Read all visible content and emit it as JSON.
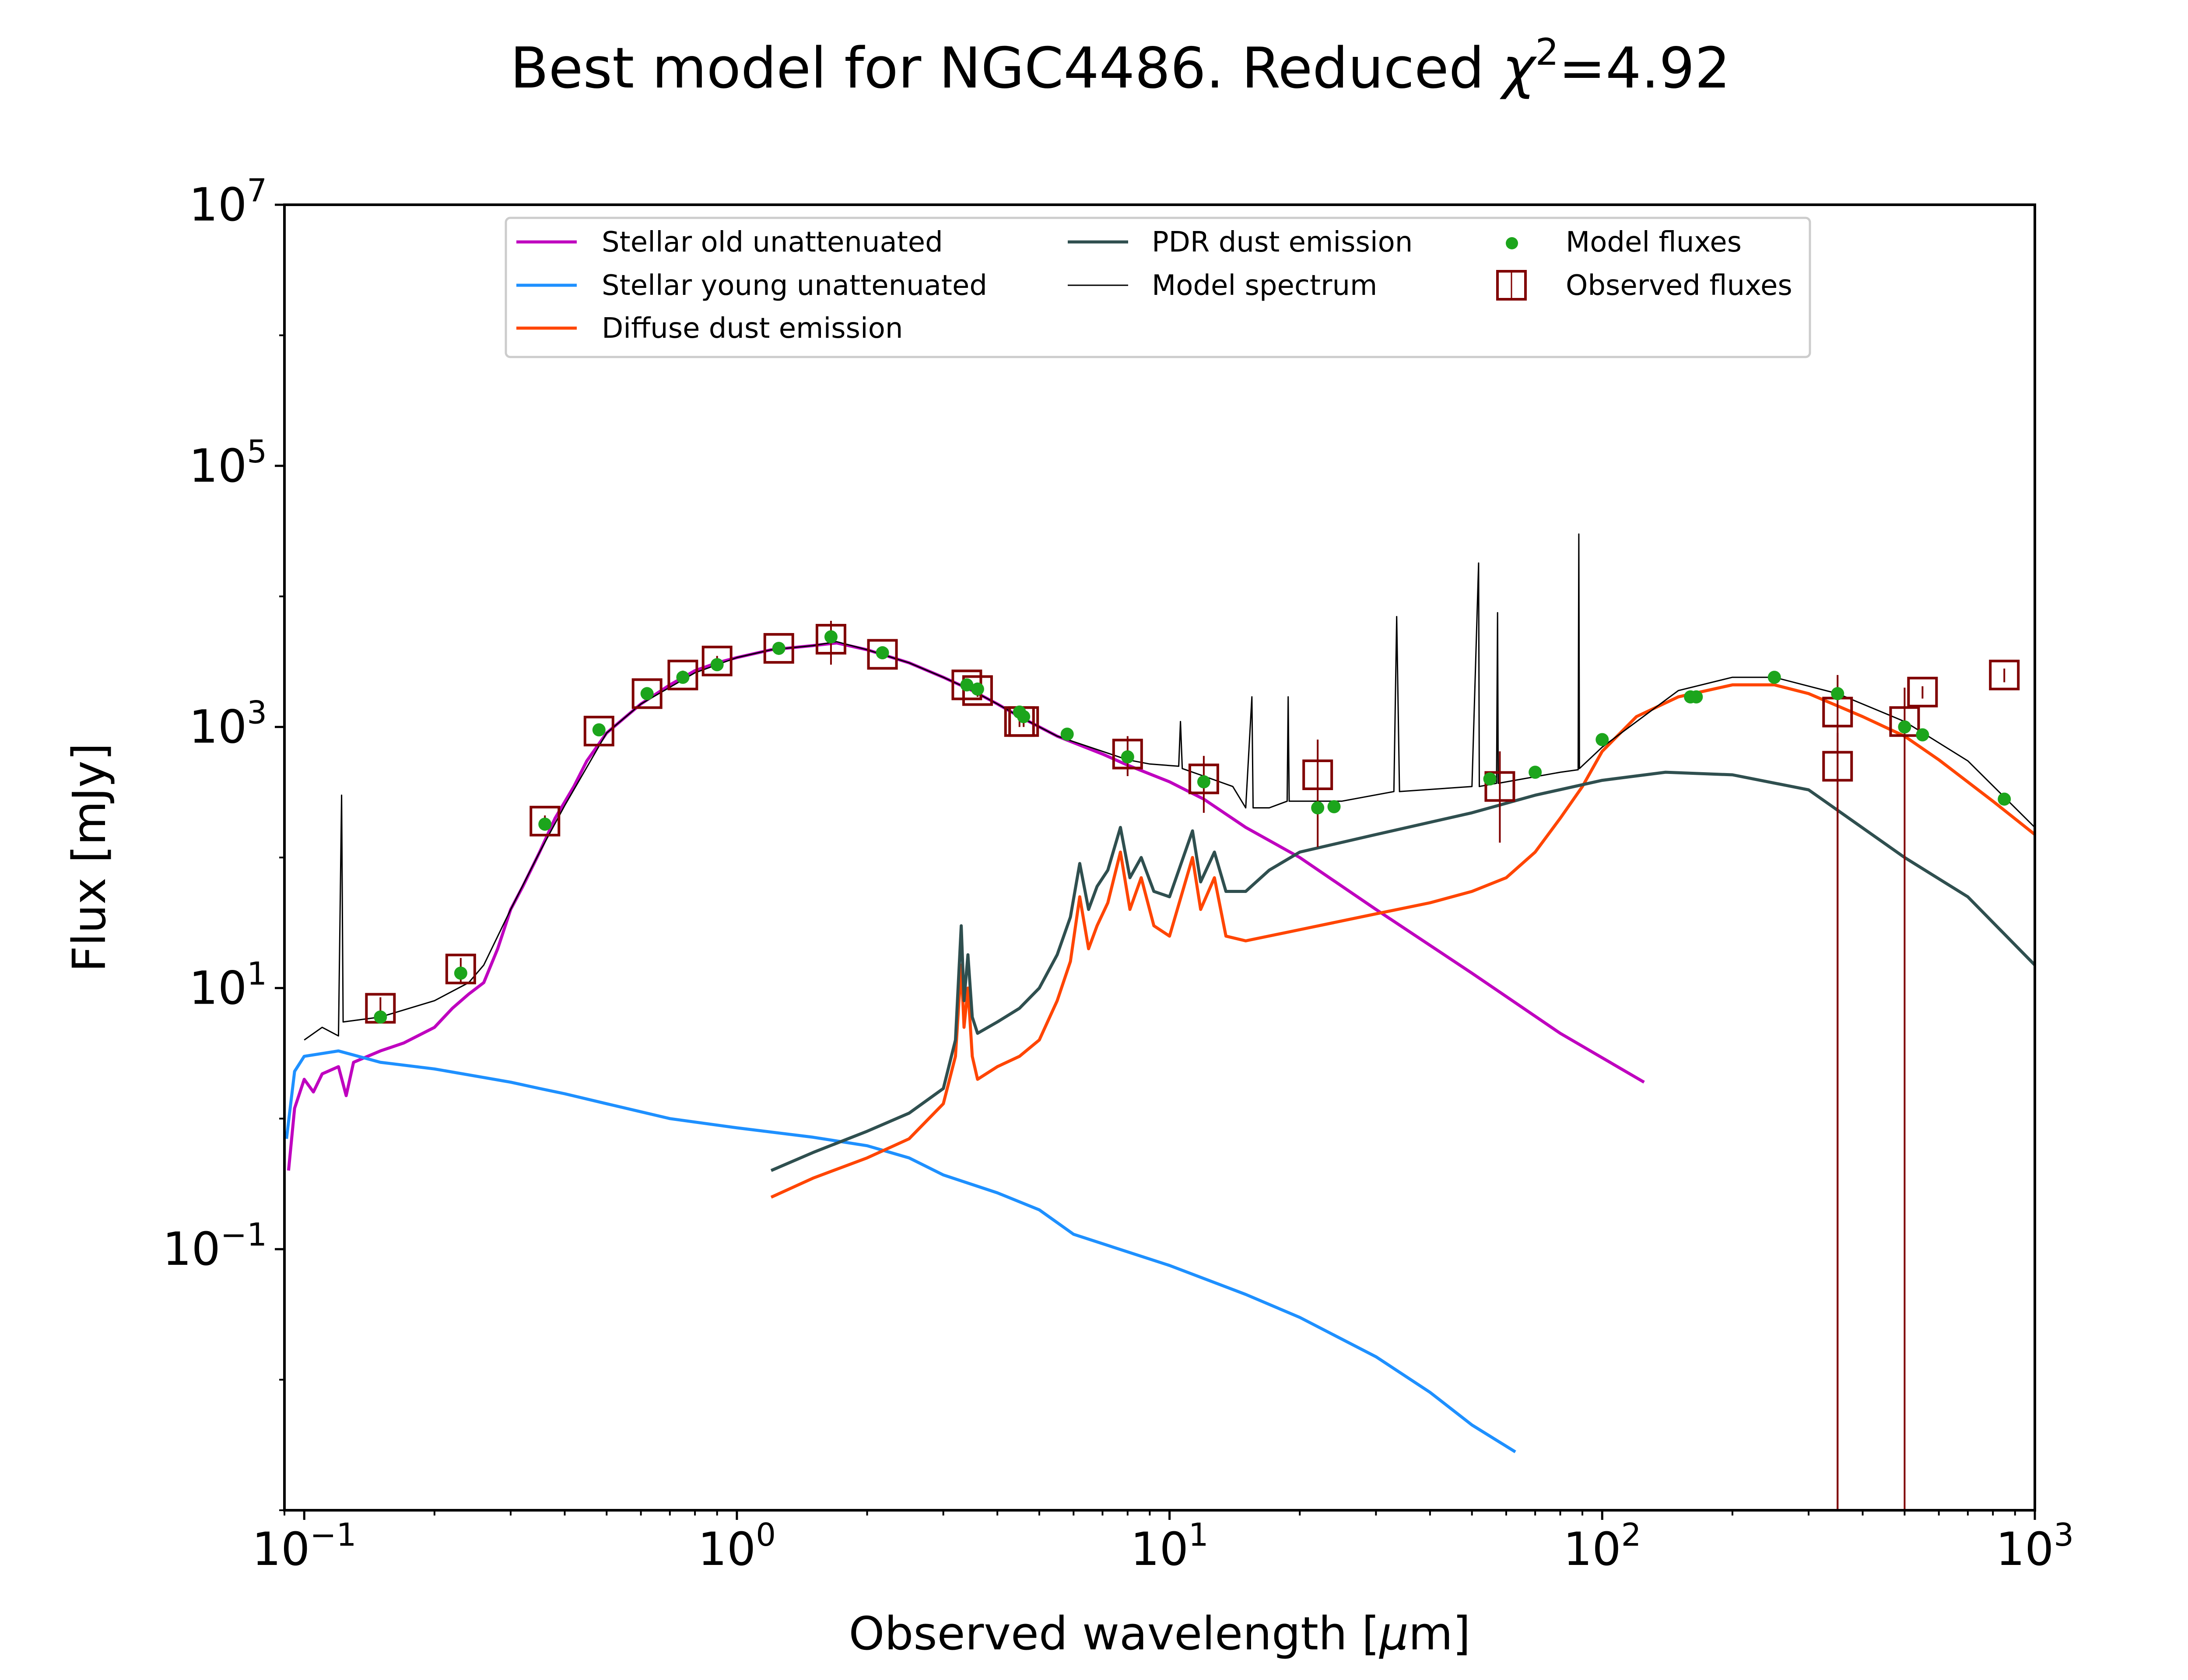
{
  "chart_data": {
    "type": "line",
    "title_prefix": "Best model for NGC4486. Reduced ",
    "title_symbol": "χ",
    "title_exponent": "2",
    "title_value": "=4.92",
    "xlabel_prefix": "Observed wavelength [",
    "xlabel_unit": "μ",
    "xlabel_suffix": "m]",
    "ylabel": "Flux [mJy]",
    "x_scale": "log",
    "y_scale": "log",
    "xlim": [
      0.09,
      1000
    ],
    "ylim": [
      0.001,
      10000000
    ],
    "grid": false,
    "legend_position": "top",
    "x_ticks": [
      {
        "value": 0.1,
        "base": "10",
        "exp": "−1"
      },
      {
        "value": 1,
        "base": "10",
        "exp": "0"
      },
      {
        "value": 10,
        "base": "10",
        "exp": "1"
      },
      {
        "value": 100,
        "base": "10",
        "exp": "2"
      },
      {
        "value": 1000,
        "base": "10",
        "exp": "3"
      }
    ],
    "y_ticks": [
      {
        "value": 0.1,
        "base": "10",
        "exp": "−1"
      },
      {
        "value": 10,
        "base": "10",
        "exp": "1"
      },
      {
        "value": 1000,
        "base": "10",
        "exp": "3"
      },
      {
        "value": 100000,
        "base": "10",
        "exp": "5"
      },
      {
        "value": 10000000,
        "base": "10",
        "exp": "7"
      }
    ],
    "series": [
      {
        "name": "Stellar old unattenuated",
        "color": "#bf00bf",
        "points": [
          [
            0.092,
            0.4
          ],
          [
            0.095,
            1.2
          ],
          [
            0.1,
            2.0
          ],
          [
            0.105,
            1.6
          ],
          [
            0.11,
            2.2
          ],
          [
            0.12,
            2.5
          ],
          [
            0.125,
            1.5
          ],
          [
            0.13,
            2.7
          ],
          [
            0.15,
            3.3
          ],
          [
            0.17,
            3.8
          ],
          [
            0.2,
            5
          ],
          [
            0.22,
            7
          ],
          [
            0.24,
            9
          ],
          [
            0.26,
            11
          ],
          [
            0.28,
            20
          ],
          [
            0.3,
            40
          ],
          [
            0.32,
            60
          ],
          [
            0.35,
            110
          ],
          [
            0.38,
            200
          ],
          [
            0.42,
            350
          ],
          [
            0.45,
            550
          ],
          [
            0.5,
            900
          ],
          [
            0.6,
            1500
          ],
          [
            0.7,
            2100
          ],
          [
            0.8,
            2700
          ],
          [
            0.9,
            3100
          ],
          [
            1.0,
            3400
          ],
          [
            1.2,
            3900
          ],
          [
            1.5,
            4200
          ],
          [
            1.7,
            4400
          ],
          [
            2.0,
            3900
          ],
          [
            2.5,
            3100
          ],
          [
            3.0,
            2400
          ],
          [
            3.5,
            1900
          ],
          [
            4.0,
            1500
          ],
          [
            4.5,
            1200
          ],
          [
            5.5,
            850
          ],
          [
            7,
            620
          ],
          [
            8,
            510
          ],
          [
            10,
            380
          ],
          [
            12,
            280
          ],
          [
            15,
            170
          ],
          [
            20,
            100
          ],
          [
            30,
            40
          ],
          [
            50,
            13
          ],
          [
            80,
            4.5
          ],
          [
            125,
            1.9
          ]
        ]
      },
      {
        "name": "Stellar young unattenuated",
        "color": "#1e90ff",
        "points": [
          [
            0.091,
            0.7
          ],
          [
            0.095,
            2.3
          ],
          [
            0.1,
            3.0
          ],
          [
            0.12,
            3.3
          ],
          [
            0.15,
            2.7
          ],
          [
            0.2,
            2.4
          ],
          [
            0.3,
            1.9
          ],
          [
            0.35,
            1.7
          ],
          [
            0.4,
            1.55
          ],
          [
            0.5,
            1.3
          ],
          [
            0.7,
            1.0
          ],
          [
            1.0,
            0.85
          ],
          [
            1.5,
            0.72
          ],
          [
            2.0,
            0.62
          ],
          [
            2.5,
            0.5
          ],
          [
            3.0,
            0.37
          ],
          [
            4.0,
            0.27
          ],
          [
            5.0,
            0.2
          ],
          [
            6.0,
            0.13
          ],
          [
            10,
            0.075
          ],
          [
            15,
            0.045
          ],
          [
            20,
            0.03
          ],
          [
            30,
            0.015
          ],
          [
            40,
            0.008
          ],
          [
            50,
            0.0045
          ],
          [
            63,
            0.0028
          ]
        ]
      },
      {
        "name": "Diffuse dust emission",
        "color": "#ff4500",
        "points": [
          [
            1.2,
            0.25
          ],
          [
            1.5,
            0.35
          ],
          [
            2,
            0.5
          ],
          [
            2.5,
            0.7
          ],
          [
            3.0,
            1.3
          ],
          [
            3.2,
            3
          ],
          [
            3.3,
            15
          ],
          [
            3.35,
            5
          ],
          [
            3.42,
            10
          ],
          [
            3.5,
            3
          ],
          [
            3.6,
            2
          ],
          [
            4,
            2.5
          ],
          [
            4.5,
            3
          ],
          [
            5,
            4
          ],
          [
            5.5,
            8
          ],
          [
            5.9,
            16
          ],
          [
            6.2,
            50
          ],
          [
            6.5,
            20
          ],
          [
            6.8,
            30
          ],
          [
            7.2,
            45
          ],
          [
            7.7,
            110
          ],
          [
            8.1,
            40
          ],
          [
            8.6,
            70
          ],
          [
            9.2,
            30
          ],
          [
            10,
            25
          ],
          [
            11.3,
            100
          ],
          [
            11.8,
            40
          ],
          [
            12.7,
            70
          ],
          [
            13.5,
            25
          ],
          [
            15,
            23
          ],
          [
            20,
            28
          ],
          [
            30,
            37
          ],
          [
            40,
            45
          ],
          [
            50,
            55
          ],
          [
            60,
            70
          ],
          [
            70,
            110
          ],
          [
            80,
            200
          ],
          [
            90,
            350
          ],
          [
            100,
            650
          ],
          [
            120,
            1200
          ],
          [
            150,
            1700
          ],
          [
            200,
            2100
          ],
          [
            250,
            2100
          ],
          [
            300,
            1800
          ],
          [
            400,
            1200
          ],
          [
            500,
            850
          ],
          [
            600,
            560
          ],
          [
            800,
            270
          ],
          [
            1000,
            150
          ]
        ]
      },
      {
        "name": "PDR dust emission",
        "color": "#2f4f4f",
        "points": [
          [
            1.2,
            0.4
          ],
          [
            1.5,
            0.55
          ],
          [
            2,
            0.8
          ],
          [
            2.5,
            1.1
          ],
          [
            3.0,
            1.7
          ],
          [
            3.2,
            4
          ],
          [
            3.3,
            30
          ],
          [
            3.35,
            8
          ],
          [
            3.42,
            18
          ],
          [
            3.5,
            6
          ],
          [
            3.6,
            4.5
          ],
          [
            4,
            5.5
          ],
          [
            4.5,
            7
          ],
          [
            5,
            10
          ],
          [
            5.5,
            18
          ],
          [
            5.9,
            35
          ],
          [
            6.2,
            90
          ],
          [
            6.5,
            40
          ],
          [
            6.8,
            60
          ],
          [
            7.2,
            80
          ],
          [
            7.7,
            170
          ],
          [
            8.1,
            70
          ],
          [
            8.6,
            100
          ],
          [
            9.2,
            55
          ],
          [
            10,
            50
          ],
          [
            11.3,
            160
          ],
          [
            11.8,
            65
          ],
          [
            12.7,
            110
          ],
          [
            13.5,
            55
          ],
          [
            15,
            55
          ],
          [
            17,
            80
          ],
          [
            20,
            110
          ],
          [
            30,
            150
          ],
          [
            50,
            220
          ],
          [
            70,
            300
          ],
          [
            100,
            390
          ],
          [
            140,
            450
          ],
          [
            200,
            430
          ],
          [
            300,
            330
          ],
          [
            500,
            100
          ],
          [
            700,
            50
          ],
          [
            1000,
            15
          ]
        ]
      },
      {
        "name": "Model spectrum",
        "color": "#000000",
        "points": [
          [
            0.1,
            4
          ],
          [
            0.11,
            5
          ],
          [
            0.12,
            4.3
          ],
          [
            0.122,
            300
          ],
          [
            0.123,
            5.5
          ],
          [
            0.15,
            6
          ],
          [
            0.2,
            8
          ],
          [
            0.24,
            11
          ],
          [
            0.26,
            15
          ],
          [
            0.3,
            40
          ],
          [
            0.35,
            110
          ],
          [
            0.4,
            250
          ],
          [
            0.5,
            900
          ],
          [
            0.6,
            1500
          ],
          [
            0.8,
            2600
          ],
          [
            1.0,
            3400
          ],
          [
            1.2,
            3900
          ],
          [
            1.5,
            4200
          ],
          [
            1.7,
            4500
          ],
          [
            2.0,
            3900
          ],
          [
            2.5,
            3100
          ],
          [
            3.0,
            2400
          ],
          [
            3.5,
            1900
          ],
          [
            4.0,
            1500
          ],
          [
            4.5,
            1200
          ],
          [
            5.5,
            850
          ],
          [
            7,
            650
          ],
          [
            8,
            560
          ],
          [
            9,
            520
          ],
          [
            10.5,
            500
          ],
          [
            10.6,
            1100
          ],
          [
            10.7,
            480
          ],
          [
            12,
            420
          ],
          [
            14,
            350
          ],
          [
            15,
            240
          ],
          [
            15.5,
            1700
          ],
          [
            15.6,
            240
          ],
          [
            17,
            240
          ],
          [
            18.7,
            270
          ],
          [
            18.8,
            1700
          ],
          [
            18.9,
            270
          ],
          [
            25,
            270
          ],
          [
            33,
            320
          ],
          [
            33.5,
            7000
          ],
          [
            34,
            320
          ],
          [
            50,
            350
          ],
          [
            51.8,
            18000
          ],
          [
            52,
            350
          ],
          [
            57,
            370
          ],
          [
            57.3,
            7500
          ],
          [
            57.5,
            370
          ],
          [
            80,
            450
          ],
          [
            88,
            470
          ],
          [
            88.3,
            30000
          ],
          [
            88.6,
            480
          ],
          [
            100,
            700
          ],
          [
            150,
            1900
          ],
          [
            200,
            2400
          ],
          [
            250,
            2400
          ],
          [
            350,
            1800
          ],
          [
            500,
            1100
          ],
          [
            700,
            550
          ],
          [
            1000,
            170
          ]
        ]
      }
    ],
    "model_fluxes": {
      "name": "Model fluxes",
      "color": "#1ca51c",
      "points": [
        [
          0.15,
          6
        ],
        [
          0.23,
          13
        ],
        [
          0.36,
          180
        ],
        [
          0.48,
          950
        ],
        [
          0.62,
          1800
        ],
        [
          0.75,
          2400
        ],
        [
          0.9,
          3000
        ],
        [
          1.25,
          4000
        ],
        [
          1.65,
          4900
        ],
        [
          2.17,
          3700
        ],
        [
          3.4,
          2100
        ],
        [
          3.6,
          1950
        ],
        [
          4.5,
          1300
        ],
        [
          4.6,
          1200
        ],
        [
          5.8,
          880
        ],
        [
          8,
          590
        ],
        [
          12,
          380
        ],
        [
          22,
          240
        ],
        [
          24,
          245
        ],
        [
          55,
          400
        ],
        [
          70,
          450
        ],
        [
          100,
          800
        ],
        [
          160,
          1700
        ],
        [
          165,
          1700
        ],
        [
          250,
          2400
        ],
        [
          350,
          1800
        ],
        [
          500,
          1000
        ],
        [
          550,
          870
        ],
        [
          850,
          280
        ]
      ]
    },
    "observed_fluxes": {
      "name": "Observed fluxes",
      "color": "#800000",
      "points": [
        {
          "x": 0.15,
          "y": 7,
          "lo": 5.5,
          "hi": 8.5
        },
        {
          "x": 0.23,
          "y": 14,
          "lo": 11,
          "hi": 17
        },
        {
          "x": 0.36,
          "y": 190,
          "lo": 170,
          "hi": 210
        },
        {
          "x": 0.48,
          "y": 930,
          "lo": 850,
          "hi": 1050
        },
        {
          "x": 0.62,
          "y": 1800,
          "lo": 1650,
          "hi": 1950
        },
        {
          "x": 0.75,
          "y": 2500,
          "lo": 2300,
          "hi": 2700
        },
        {
          "x": 0.9,
          "y": 3200,
          "lo": 2900,
          "hi": 3500
        },
        {
          "x": 1.25,
          "y": 4000,
          "lo": 3700,
          "hi": 4300
        },
        {
          "x": 1.65,
          "y": 4700,
          "lo": 3000,
          "hi": 6500
        },
        {
          "x": 2.17,
          "y": 3600,
          "lo": 3300,
          "hi": 3900
        },
        {
          "x": 3.4,
          "y": 2100,
          "lo": 1900,
          "hi": 2300
        },
        {
          "x": 3.6,
          "y": 1900,
          "lo": 1700,
          "hi": 2100
        },
        {
          "x": 4.5,
          "y": 1100,
          "lo": 1000,
          "hi": 1200
        },
        {
          "x": 4.6,
          "y": 1100,
          "lo": 1000,
          "hi": 1200
        },
        {
          "x": 8,
          "y": 620,
          "lo": 420,
          "hi": 850
        },
        {
          "x": 12,
          "y": 400,
          "lo": 220,
          "hi": 600
        },
        {
          "x": 22,
          "y": 430,
          "lo": 120,
          "hi": 800
        },
        {
          "x": 58,
          "y": 350,
          "lo": 130,
          "hi": 650
        },
        {
          "x": 350,
          "y": 1300,
          "lo": 0.001,
          "hi": 2500
        },
        {
          "x": 350,
          "y": 500,
          "lo": 0.001,
          "hi": 900
        },
        {
          "x": 500,
          "y": 1100,
          "lo": 0.001,
          "hi": 2000
        },
        {
          "x": 550,
          "y": 1850,
          "lo": 1650,
          "hi": 2050
        },
        {
          "x": 850,
          "y": 2500,
          "lo": 2200,
          "hi": 2800
        }
      ]
    }
  }
}
